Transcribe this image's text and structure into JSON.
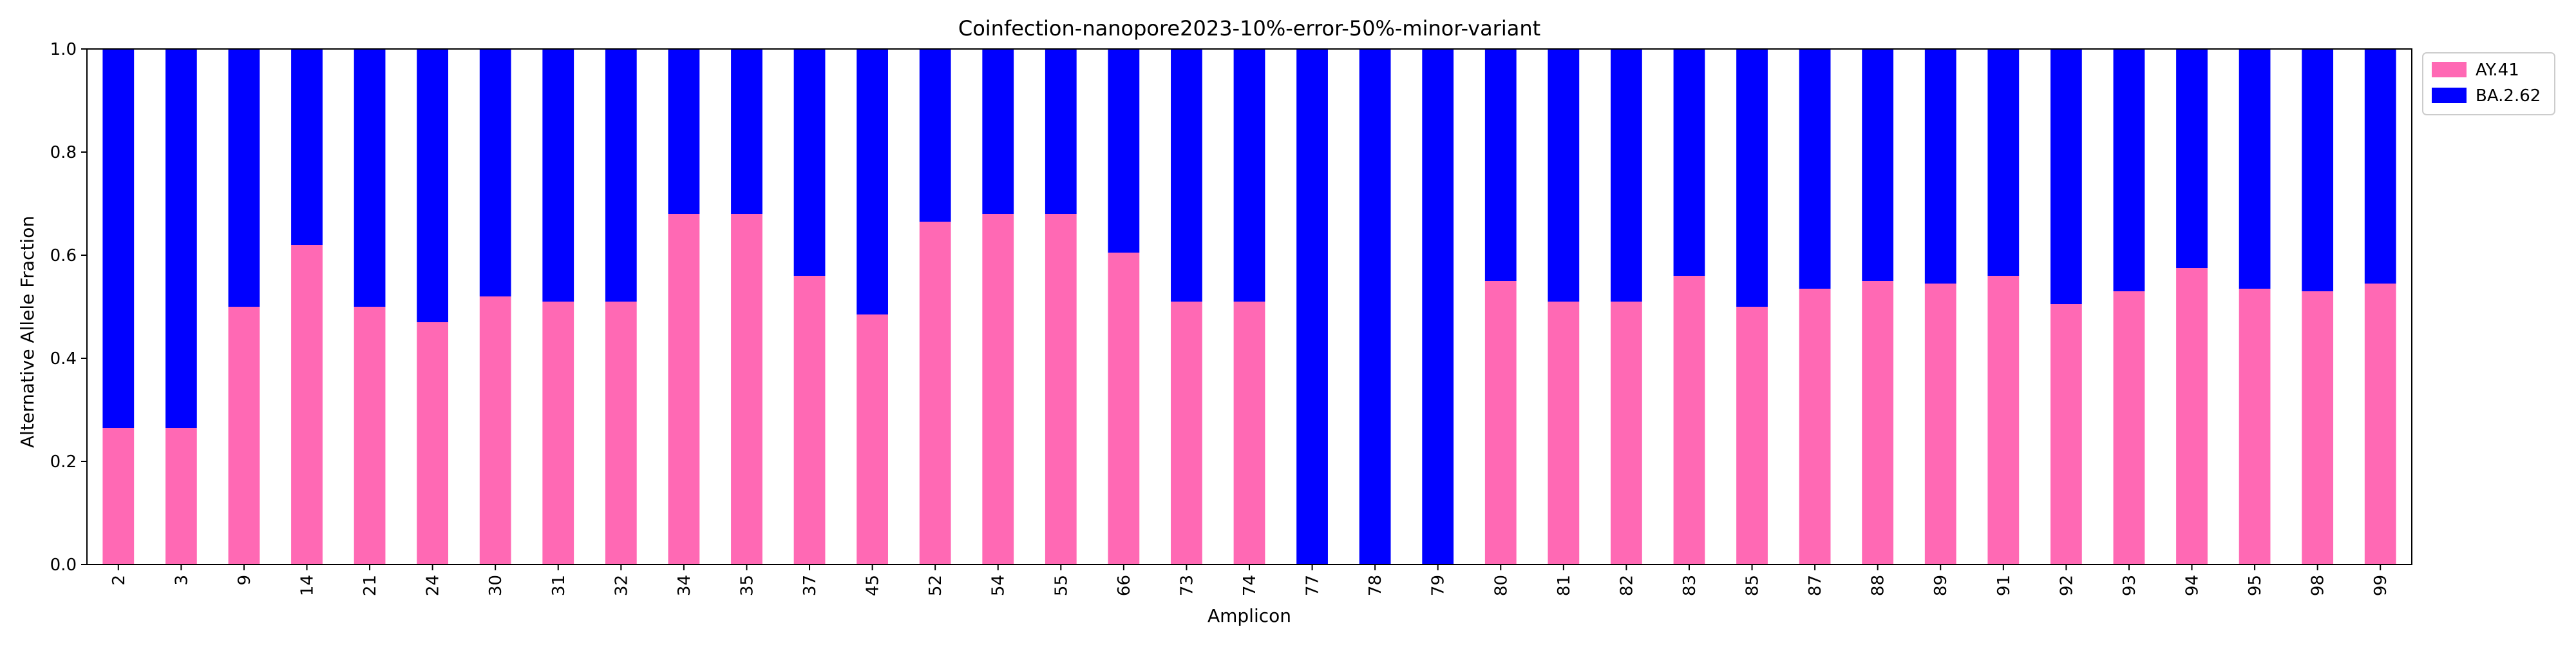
{
  "chart_data": {
    "type": "bar",
    "stacked": true,
    "title": "Coinfection-nanopore2023-10%-error-50%-minor-variant",
    "xlabel": "Amplicon",
    "ylabel": "Alternative Allele Fraction",
    "ylim": [
      0,
      1.0
    ],
    "yticks": [
      "0.0",
      "0.2",
      "0.4",
      "0.6",
      "0.8",
      "1.0"
    ],
    "grid": false,
    "legend_position": "outside-top-right",
    "categories": [
      "2",
      "3",
      "9",
      "14",
      "21",
      "24",
      "30",
      "31",
      "32",
      "34",
      "35",
      "37",
      "45",
      "52",
      "54",
      "55",
      "66",
      "73",
      "74",
      "77",
      "78",
      "79",
      "80",
      "81",
      "82",
      "83",
      "85",
      "87",
      "88",
      "89",
      "91",
      "92",
      "93",
      "94",
      "95",
      "98",
      "99"
    ],
    "series": [
      {
        "name": "AY.41",
        "color": "#ff69b4",
        "values": [
          0.265,
          0.265,
          0.5,
          0.62,
          0.5,
          0.47,
          0.52,
          0.51,
          0.51,
          0.68,
          0.68,
          0.56,
          0.485,
          0.665,
          0.68,
          0.68,
          0.605,
          0.51,
          0.51,
          0.0,
          0.0,
          0.0,
          0.55,
          0.51,
          0.51,
          0.56,
          0.5,
          0.535,
          0.55,
          0.545,
          0.56,
          0.505,
          0.53,
          0.575,
          0.535,
          0.53,
          0.545
        ]
      },
      {
        "name": "BA.2.62",
        "color": "#0000ff",
        "values": [
          0.735,
          0.735,
          0.5,
          0.38,
          0.5,
          0.53,
          0.48,
          0.49,
          0.49,
          0.32,
          0.32,
          0.44,
          0.515,
          0.335,
          0.32,
          0.32,
          0.395,
          0.49,
          0.49,
          1.0,
          1.0,
          1.0,
          0.45,
          0.49,
          0.49,
          0.44,
          0.5,
          0.465,
          0.45,
          0.455,
          0.44,
          0.495,
          0.47,
          0.425,
          0.465,
          0.47,
          0.455
        ]
      }
    ]
  }
}
